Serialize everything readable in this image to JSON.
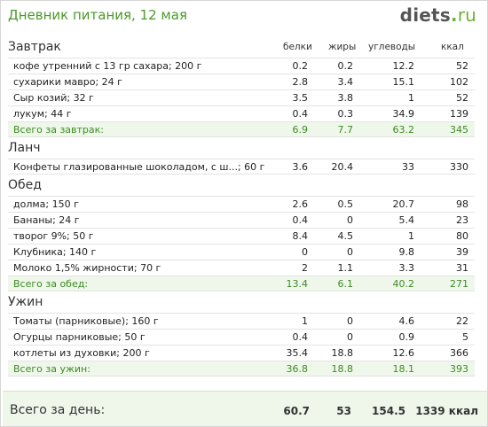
{
  "header": {
    "title": "Дневник питания, 12 мая",
    "brand_name": "diets",
    "brand_dot": ".",
    "brand_tld": "ru"
  },
  "columns": {
    "protein": "белки",
    "fat": "жиры",
    "carbs": "углеводы",
    "kcal": "ккал"
  },
  "meals": {
    "breakfast": {
      "title": "Завтрак",
      "rows": [
        {
          "name": "кофе утренний  с 13 гр сахара; 200 г",
          "protein": "0.2",
          "fat": "0.2",
          "carbs": "12.2",
          "kcal": "52"
        },
        {
          "name": "сухарики мавро; 24 г",
          "protein": "2.8",
          "fat": "3.4",
          "carbs": "15.1",
          "kcal": "102"
        },
        {
          "name": "Сыр козий; 32 г",
          "protein": "3.5",
          "fat": "3.8",
          "carbs": "1",
          "kcal": "52"
        },
        {
          "name": "лукум; 44 г",
          "protein": "0.4",
          "fat": "0.3",
          "carbs": "34.9",
          "kcal": "139"
        }
      ],
      "total": {
        "name": "Всего за завтрак:",
        "protein": "6.9",
        "fat": "7.7",
        "carbs": "63.2",
        "kcal": "345"
      }
    },
    "lunch": {
      "title": "Ланч",
      "rows": [
        {
          "name": "Конфеты глазированные шоколадом, с ш...; 60 г",
          "protein": "3.6",
          "fat": "20.4",
          "carbs": "33",
          "kcal": "330"
        }
      ]
    },
    "dinner": {
      "title": "Обед",
      "rows": [
        {
          "name": "долма; 150 г",
          "protein": "2.6",
          "fat": "0.5",
          "carbs": "20.7",
          "kcal": "98"
        },
        {
          "name": "Бананы; 24 г",
          "protein": "0.4",
          "fat": "0",
          "carbs": "5.4",
          "kcal": "23"
        },
        {
          "name": "творог 9%; 50 г",
          "protein": "8.4",
          "fat": "4.5",
          "carbs": "1",
          "kcal": "80"
        },
        {
          "name": "Клубника; 140 г",
          "protein": "0",
          "fat": "0",
          "carbs": "9.8",
          "kcal": "39"
        },
        {
          "name": "Молоко 1,5% жирности; 70 г",
          "protein": "2",
          "fat": "1.1",
          "carbs": "3.3",
          "kcal": "31"
        }
      ],
      "total": {
        "name": "Всего за обед:",
        "protein": "13.4",
        "fat": "6.1",
        "carbs": "40.2",
        "kcal": "271"
      }
    },
    "supper": {
      "title": "Ужин",
      "rows": [
        {
          "name": "Томаты (парниковые); 160 г",
          "protein": "1",
          "fat": "0",
          "carbs": "4.6",
          "kcal": "22"
        },
        {
          "name": "Огурцы парниковые; 50 г",
          "protein": "0.4",
          "fat": "0",
          "carbs": "0.9",
          "kcal": "5"
        },
        {
          "name": "котлеты из духовки; 200 г",
          "protein": "35.4",
          "fat": "18.8",
          "carbs": "12.6",
          "kcal": "366"
        }
      ],
      "total": {
        "name": "Всего за ужин:",
        "protein": "36.8",
        "fat": "18.8",
        "carbs": "18.1",
        "kcal": "393"
      }
    }
  },
  "day_total": {
    "label": "Всего за день:",
    "protein": "60.7",
    "fat": "53",
    "carbs": "154.5",
    "kcal": "1339 ккал"
  },
  "colors": {
    "accent_green": "#4a9a2a",
    "total_bg": "#eef7ea",
    "total_text": "#3d8c23"
  }
}
